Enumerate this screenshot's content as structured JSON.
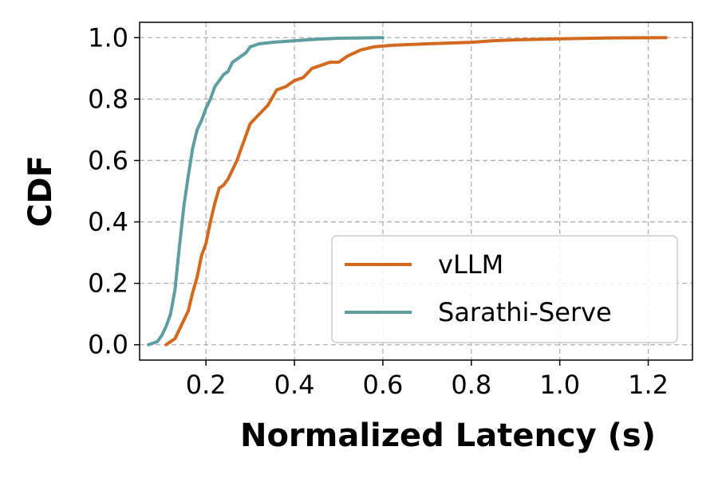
{
  "chart_data": {
    "type": "line",
    "xlabel": "Normalized Latency (s)",
    "ylabel": "CDF",
    "xlim": [
      0.05,
      1.3
    ],
    "ylim": [
      -0.05,
      1.05
    ],
    "xticks": [
      "0.2",
      "0.4",
      "0.6",
      "0.8",
      "1.0",
      "1.2"
    ],
    "yticks": [
      "0.0",
      "0.2",
      "0.4",
      "0.6",
      "0.8",
      "1.0"
    ],
    "grid": true,
    "legend_position": "lower-right",
    "series": [
      {
        "name": "vLLM",
        "color": "#d2691e",
        "x": [
          0.11,
          0.13,
          0.14,
          0.15,
          0.16,
          0.17,
          0.18,
          0.19,
          0.2,
          0.21,
          0.22,
          0.23,
          0.24,
          0.25,
          0.27,
          0.28,
          0.29,
          0.3,
          0.32,
          0.34,
          0.36,
          0.38,
          0.4,
          0.42,
          0.44,
          0.46,
          0.48,
          0.5,
          0.52,
          0.55,
          0.58,
          0.62,
          0.7,
          0.8,
          0.85,
          0.9,
          1.0,
          1.1,
          1.24
        ],
        "y": [
          0.0,
          0.02,
          0.05,
          0.08,
          0.11,
          0.17,
          0.22,
          0.29,
          0.33,
          0.4,
          0.46,
          0.51,
          0.52,
          0.54,
          0.6,
          0.64,
          0.68,
          0.72,
          0.75,
          0.78,
          0.83,
          0.84,
          0.86,
          0.87,
          0.9,
          0.91,
          0.92,
          0.92,
          0.94,
          0.96,
          0.97,
          0.975,
          0.98,
          0.985,
          0.99,
          0.993,
          0.996,
          0.999,
          1.0
        ]
      },
      {
        "name": "Sarathi-Serve",
        "color": "#5f9ea0",
        "x": [
          0.07,
          0.09,
          0.1,
          0.11,
          0.12,
          0.13,
          0.14,
          0.15,
          0.16,
          0.17,
          0.18,
          0.19,
          0.2,
          0.21,
          0.22,
          0.23,
          0.24,
          0.25,
          0.26,
          0.27,
          0.28,
          0.29,
          0.3,
          0.32,
          0.35,
          0.4,
          0.45,
          0.5,
          0.6
        ],
        "y": [
          0.0,
          0.01,
          0.03,
          0.06,
          0.1,
          0.18,
          0.32,
          0.45,
          0.55,
          0.64,
          0.7,
          0.73,
          0.77,
          0.8,
          0.84,
          0.86,
          0.88,
          0.89,
          0.92,
          0.93,
          0.94,
          0.95,
          0.97,
          0.98,
          0.985,
          0.99,
          0.995,
          0.998,
          1.0
        ]
      }
    ]
  }
}
